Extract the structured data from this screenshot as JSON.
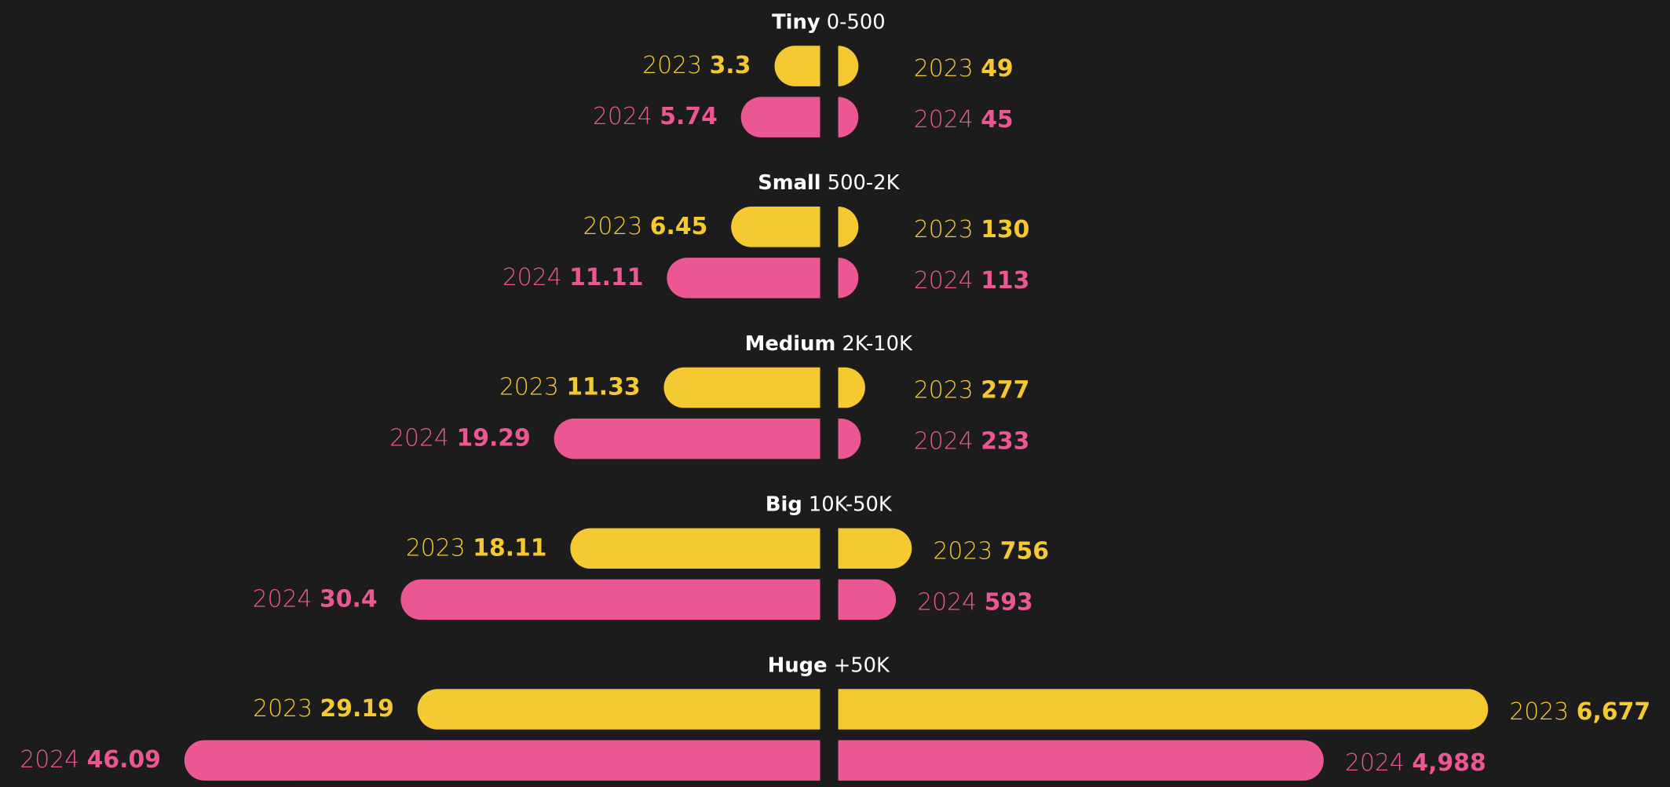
{
  "chart_data": {
    "type": "butterfly",
    "categories": [
      "Tiny",
      "Small",
      "Medium",
      "Big",
      "Huge"
    ],
    "category_ranges": [
      "0-500",
      "500-2K",
      "2K-10K",
      "10K-50K",
      "+50K"
    ],
    "left": {
      "xlim": [
        0,
        47
      ],
      "series": [
        {
          "name": "2023",
          "color": "#f5c932",
          "values": [
            3.3,
            6.45,
            11.33,
            18.11,
            29.19
          ]
        },
        {
          "name": "2024",
          "color": "#eb5793",
          "values": [
            5.74,
            11.11,
            19.29,
            30.4,
            46.09
          ]
        }
      ]
    },
    "right": {
      "xlim": [
        0,
        7000
      ],
      "series": [
        {
          "name": "2023",
          "color": "#f5c932",
          "values": [
            49,
            130,
            277,
            756,
            6677
          ],
          "value_labels": [
            "49",
            "130",
            "277",
            "756",
            "6,677"
          ]
        },
        {
          "name": "2024",
          "color": "#eb5793",
          "values": [
            45,
            113,
            233,
            593,
            4988
          ],
          "value_labels": [
            "45",
            "113",
            "233",
            "593",
            "4,988"
          ]
        }
      ]
    }
  }
}
